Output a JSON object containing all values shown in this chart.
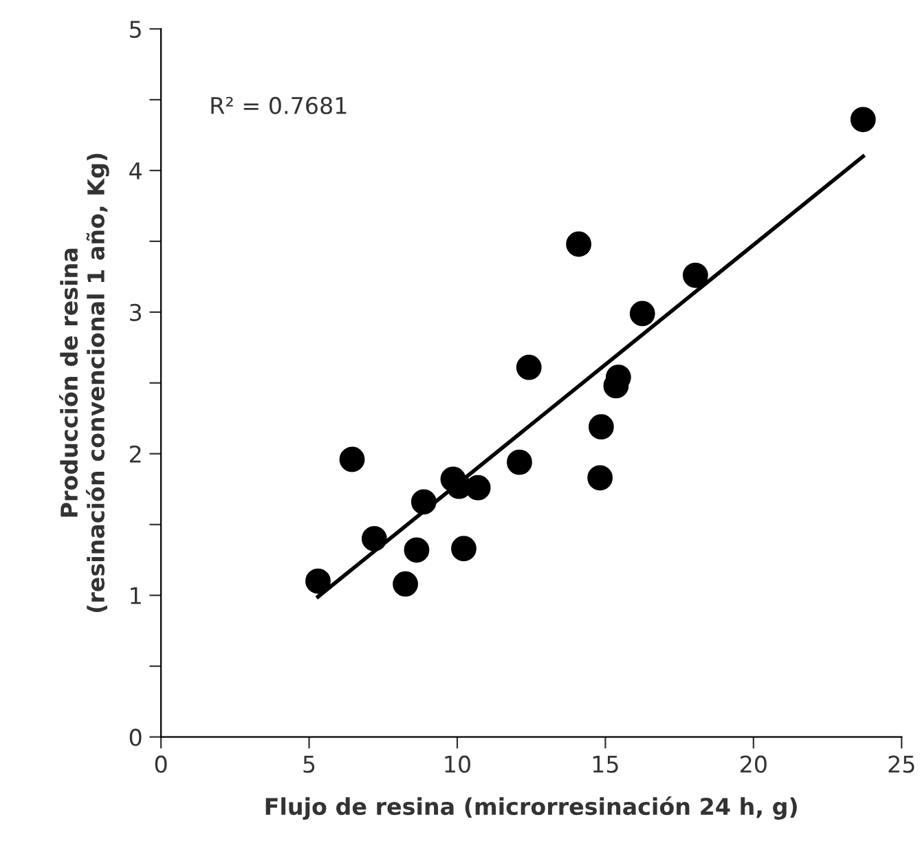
{
  "chart_data": {
    "type": "scatter",
    "xlabel": "Flujo de resina (microrresinación 24 h, g)",
    "ylabel": "Producción de resina\n(resinación convencional 1 año, Kg)",
    "annotations": [
      "R² = 0.7681"
    ],
    "series": [
      {
        "color": "#000000",
        "marker": "circle",
        "x": [
          5.3,
          6.45,
          7.2,
          8.25,
          8.63,
          8.87,
          9.86,
          10.06,
          10.22,
          10.7,
          12.1,
          12.42,
          14.1,
          14.82,
          14.86,
          15.36,
          15.44,
          16.25,
          18.04,
          23.7
        ],
        "values": [
          1.1,
          1.96,
          1.4,
          1.08,
          1.32,
          1.66,
          1.82,
          1.77,
          1.33,
          1.76,
          1.94,
          2.61,
          3.48,
          1.83,
          2.19,
          2.48,
          2.54,
          2.99,
          3.26,
          4.36
        ]
      },
      {
        "type": "line",
        "color": "#000000",
        "x": [
          5.3,
          23.7
        ],
        "values": [
          0.99,
          4.1
        ]
      }
    ],
    "xlim": [
      0,
      25
    ],
    "xticks": [
      0,
      5,
      10,
      15,
      20,
      25
    ],
    "ylim": [
      0,
      5
    ],
    "yticks": [
      0,
      {
        "value": 0.5,
        "label": null
      },
      1,
      {
        "value": 1.5,
        "label": null
      },
      2,
      {
        "value": 2.5,
        "label": null
      },
      3,
      {
        "value": 3.5,
        "label": null
      },
      4,
      {
        "value": 4.5,
        "label": null
      },
      5
    ],
    "grid": false,
    "legend": false
  }
}
